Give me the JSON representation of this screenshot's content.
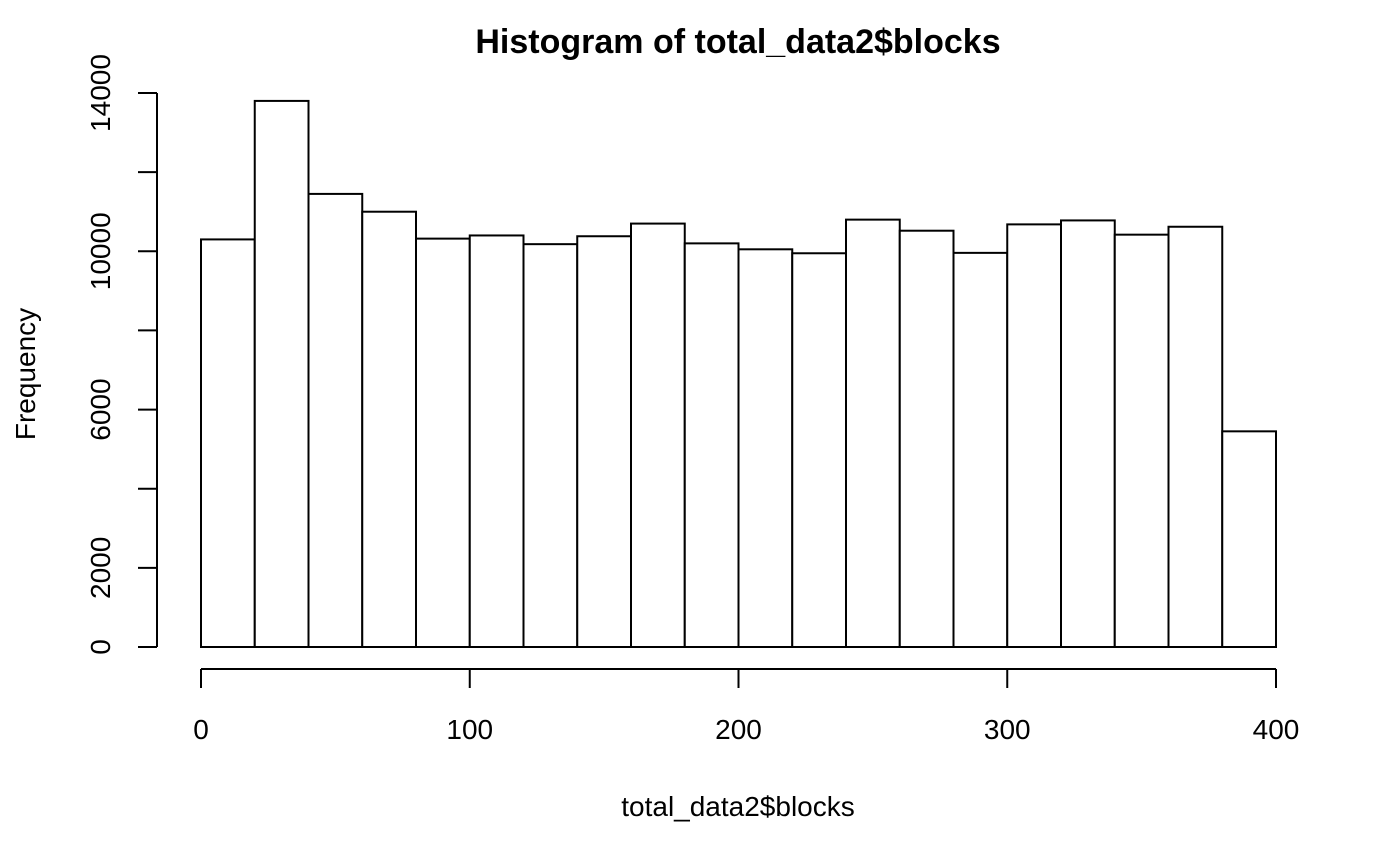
{
  "chart_data": {
    "type": "bar",
    "subtype": "histogram",
    "title": "Histogram of total_data2$blocks",
    "xlabel": "total_data2$blocks",
    "ylabel": "Frequency",
    "bins": [
      [
        0,
        20
      ],
      [
        20,
        40
      ],
      [
        40,
        60
      ],
      [
        60,
        80
      ],
      [
        80,
        100
      ],
      [
        100,
        120
      ],
      [
        120,
        140
      ],
      [
        140,
        160
      ],
      [
        160,
        180
      ],
      [
        180,
        200
      ],
      [
        200,
        220
      ],
      [
        220,
        240
      ],
      [
        240,
        260
      ],
      [
        260,
        280
      ],
      [
        280,
        300
      ],
      [
        300,
        320
      ],
      [
        320,
        340
      ],
      [
        340,
        360
      ],
      [
        360,
        380
      ],
      [
        380,
        400
      ]
    ],
    "values": [
      10300,
      13800,
      11450,
      11000,
      10320,
      10400,
      10180,
      10380,
      10700,
      10200,
      10050,
      9950,
      10800,
      10520,
      9960,
      10680,
      10780,
      10420,
      10620,
      5450
    ],
    "xlim": [
      0,
      400
    ],
    "ylim": [
      0,
      14000
    ],
    "x_ticks": [
      0,
      100,
      200,
      300,
      400
    ],
    "y_ticks": [
      0,
      2000,
      4000,
      6000,
      8000,
      10000,
      12000,
      14000
    ],
    "x_tick_labels": [
      "0",
      "100",
      "200",
      "300",
      "400"
    ],
    "y_tick_labels": [
      "0",
      "2000",
      "",
      "6000",
      "",
      "10000",
      "",
      "14000"
    ],
    "grid": false,
    "legend": "none"
  }
}
